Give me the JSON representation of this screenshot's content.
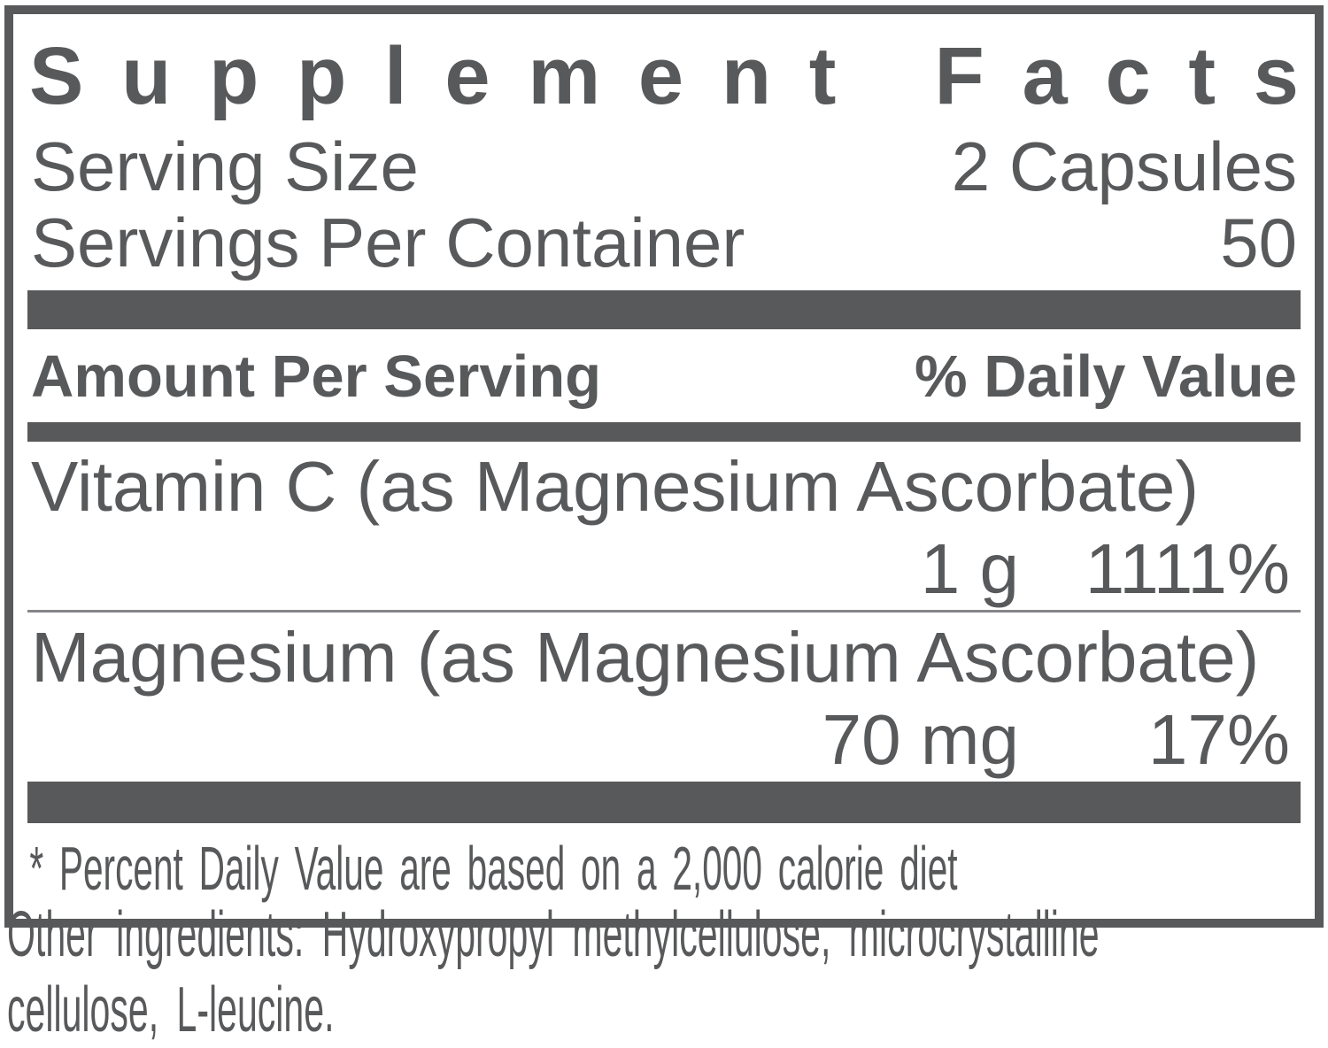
{
  "colors": {
    "text": "#58595B",
    "bar": "#58595B",
    "hairline": "#85868A",
    "background": "#FFFFFF"
  },
  "panel": {
    "title": "Supplement Facts",
    "serving_size": {
      "label": "Serving Size",
      "value": "2 Capsules"
    },
    "servings_per_container": {
      "label": "Servings Per Container",
      "value": "50"
    },
    "columns": {
      "amount_header": "Amount Per Serving",
      "daily_value_header": "% Daily Value"
    },
    "nutrients": [
      {
        "name": "Vitamin C (as Magnesium Ascorbate)",
        "amount": "1 g",
        "daily_value": "1111%"
      },
      {
        "name": "Magnesium (as Magnesium Ascorbate)",
        "amount": "70 mg",
        "daily_value": "17%"
      }
    ],
    "footnote": "* Percent Daily Value are based on a 2,000 calorie diet"
  },
  "other_ingredients": {
    "lines": [
      "Other ingredients: Hydroxypropyl methylcellulose, microcrystalline",
      "cellulose, L-leucine."
    ]
  }
}
